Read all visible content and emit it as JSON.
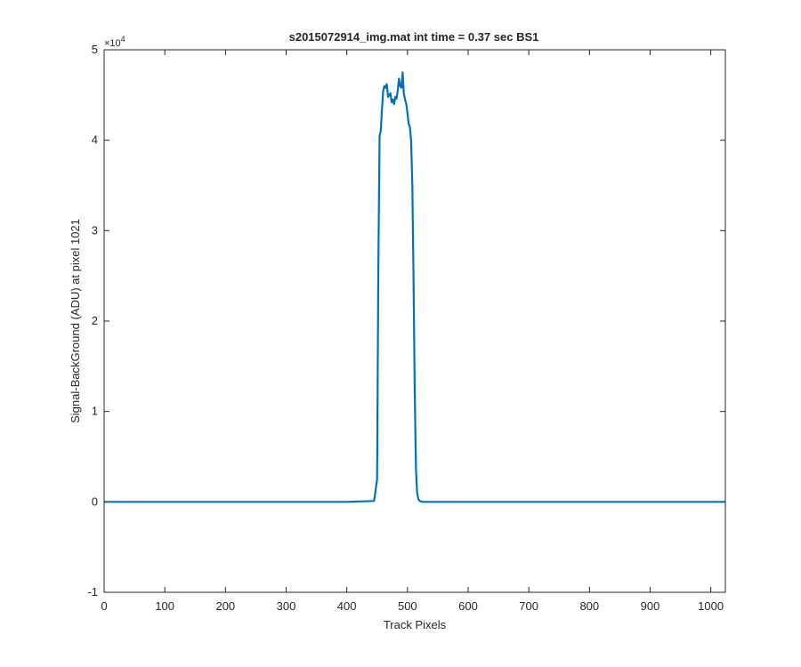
{
  "chart_data": {
    "type": "line",
    "title": "s2015072914_img.mat int time = 0.37 sec   BS1",
    "xlabel": "Track Pixels",
    "ylabel": "Signal-BackGround (ADU) at pixel 1021",
    "xlim": [
      0,
      1024
    ],
    "ylim": [
      -1,
      5
    ],
    "y_scale_exponent_label": "×10",
    "y_scale_exponent_power": "4",
    "x_ticks": [
      0,
      100,
      200,
      300,
      400,
      500,
      600,
      700,
      800,
      900,
      1000
    ],
    "x_tick_labels": [
      "0",
      "100",
      "200",
      "300",
      "400",
      "500",
      "600",
      "700",
      "800",
      "900",
      "1000"
    ],
    "y_ticks": [
      -1,
      0,
      1,
      2,
      3,
      4,
      5
    ],
    "y_tick_labels": [
      "-1",
      "0",
      "1",
      "2",
      "3",
      "4",
      "5"
    ],
    "grid": false,
    "line_color": "#0072bd",
    "series": [
      {
        "x": [
          0,
          100,
          200,
          300,
          400,
          445,
          450,
          452,
          454,
          456,
          458,
          460,
          462,
          464,
          466,
          468,
          470,
          472,
          474,
          476,
          478,
          480,
          482,
          484,
          486,
          488,
          490,
          492,
          494,
          496,
          498,
          500,
          502,
          504,
          506,
          508,
          510,
          512,
          514,
          516,
          518,
          520,
          525,
          600,
          700,
          800,
          900,
          1024
        ],
        "y": [
          0,
          0,
          0,
          0,
          0,
          0.01,
          0.25,
          2.6,
          4.05,
          4.1,
          4.35,
          4.55,
          4.6,
          4.58,
          4.62,
          4.48,
          4.5,
          4.52,
          4.42,
          4.45,
          4.4,
          4.48,
          4.46,
          4.55,
          4.68,
          4.6,
          4.58,
          4.75,
          4.52,
          4.45,
          4.4,
          4.3,
          4.18,
          4.15,
          4.0,
          3.5,
          2.5,
          1.2,
          0.35,
          0.1,
          0.03,
          0.01,
          0,
          0,
          0,
          0,
          0,
          0
        ]
      }
    ]
  }
}
